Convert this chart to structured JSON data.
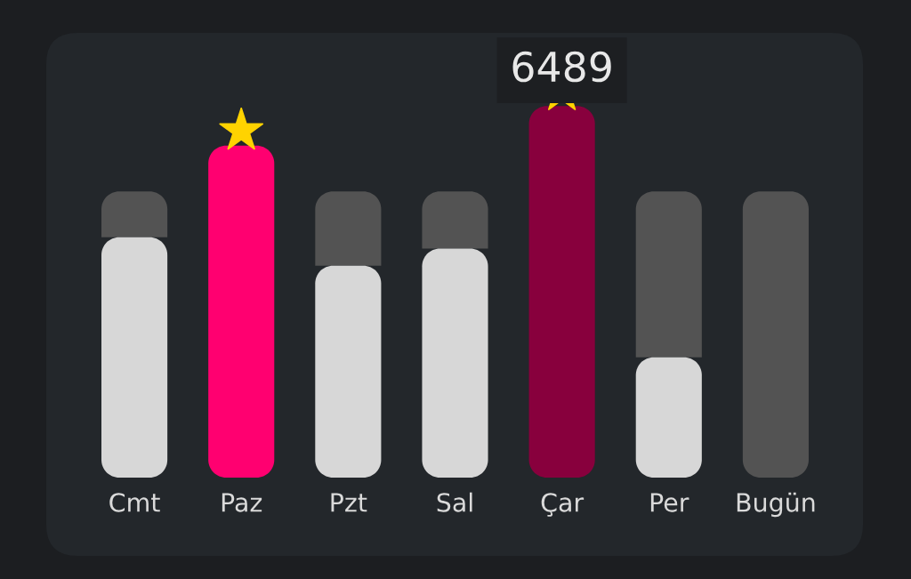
{
  "chart_data": {
    "type": "bar",
    "stacked": true,
    "categories": [
      "Cmt",
      "Paz",
      "Pzt",
      "Sal",
      "Çar",
      "Per",
      "Bugün"
    ],
    "series": [
      {
        "colors": [
          "#d7d7d7",
          "#ff0070",
          "#d7d7d7",
          "#d7d7d7",
          "#88003d",
          "#d7d7d7",
          "#d7d7d7"
        ],
        "values": [
          4200,
          5800,
          3700,
          4000,
          6489,
          2100,
          null
        ],
        "value_labels": [
          null,
          null,
          null,
          null,
          "6489",
          null,
          null
        ]
      },
      {
        "color": "#535353",
        "values": [
          800,
          null,
          1300,
          1000,
          null,
          2900,
          5000
        ]
      }
    ]
  }
}
